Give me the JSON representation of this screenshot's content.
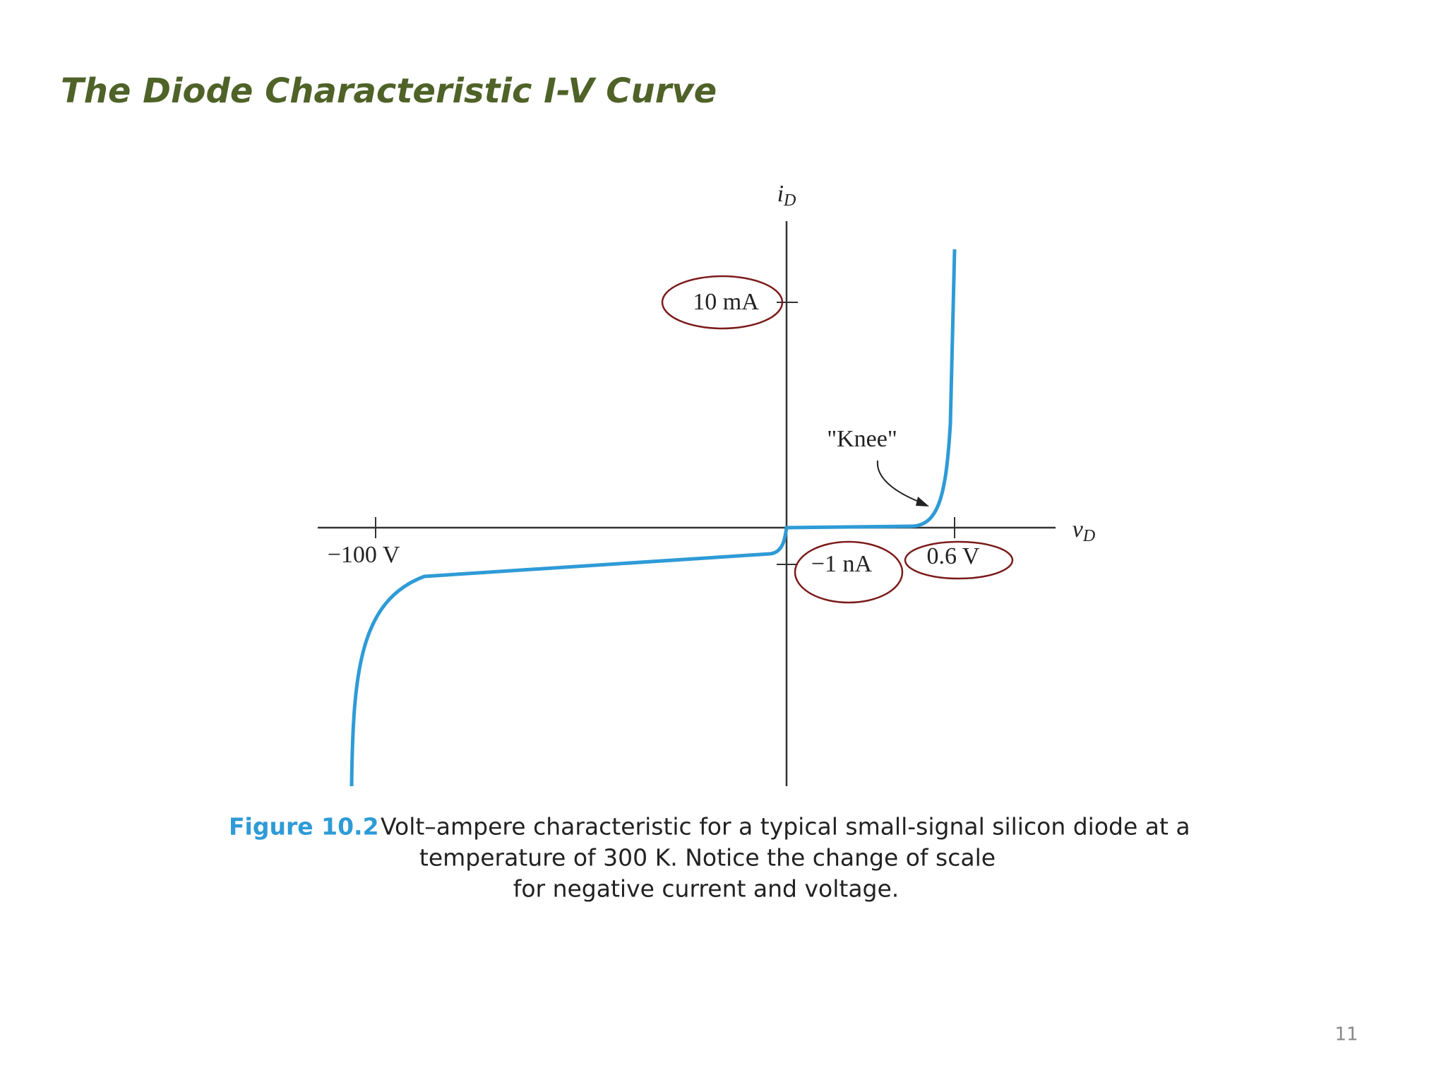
{
  "header": {
    "title": "The Diode Characteristic I-V Curve"
  },
  "figure": {
    "y_axis_label": {
      "symbol": "i",
      "subscript": "D"
    },
    "x_axis_label": {
      "symbol": "v",
      "subscript": "D"
    },
    "tick_labels": {
      "positive_current": "10 mA",
      "negative_current": "−1 nA",
      "negative_voltage": "−100 V",
      "positive_voltage": "0.6 V"
    },
    "annotation": "\"Knee\""
  },
  "caption": {
    "label": "Figure 10.2",
    "lines": [
      "Volt–ampere characteristic for a typical small-signal silicon diode at a",
      "temperature of 300 K. Notice the change of scale",
      "for negative current and voltage."
    ]
  },
  "footer": {
    "page_number": "11"
  }
}
